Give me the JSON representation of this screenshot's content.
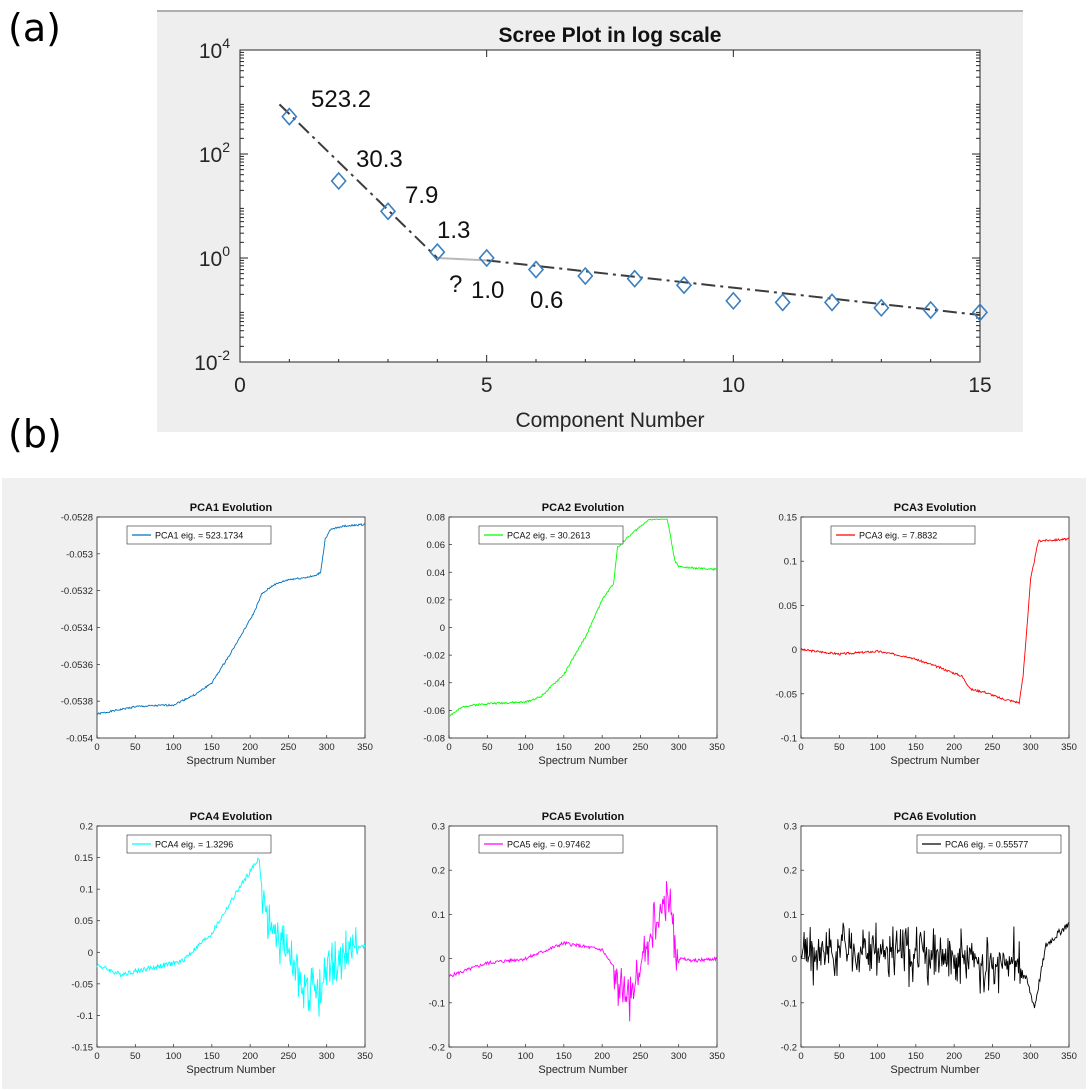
{
  "panel_labels": {
    "a": "(a)",
    "b": "(b)"
  },
  "chart_data": [
    {
      "type": "scatter",
      "title": "Scree Plot in log scale",
      "xlabel": "Component Number",
      "ylabel": "",
      "xlim": [
        0,
        15
      ],
      "ylim": [
        0.01,
        10000
      ],
      "yscale": "log",
      "x_ticks": [
        "0",
        "5",
        "10",
        "15"
      ],
      "y_ticks": [
        {
          "base": "10",
          "exp": "4"
        },
        {
          "base": "10",
          "exp": "2"
        },
        {
          "base": "10",
          "exp": "0"
        },
        {
          "base": "10",
          "exp": "-2"
        }
      ],
      "marker": "diamond",
      "marker_color": "#3a7fc0",
      "background": "#eeeeee",
      "x": [
        1,
        2,
        3,
        4,
        5,
        6,
        7,
        8,
        9,
        10,
        11,
        12,
        13,
        14,
        15
      ],
      "y": [
        523.2,
        30.3,
        7.9,
        1.3,
        1.0,
        0.6,
        0.45,
        0.4,
        0.3,
        0.15,
        0.14,
        0.14,
        0.11,
        0.1,
        0.09
      ],
      "fit_lines": [
        {
          "x": [
            0.8,
            4
          ],
          "y": [
            900,
            1.0
          ],
          "style": "dash-dot"
        },
        {
          "x": [
            4,
            5
          ],
          "y": [
            1.0,
            0.9
          ],
          "style": "solid-gray"
        },
        {
          "x": [
            5,
            15
          ],
          "y": [
            0.9,
            0.08
          ],
          "style": "dash-dot"
        }
      ],
      "annotations": [
        "523.2",
        "30.3",
        "7.9",
        "1.3",
        "?",
        "1.0",
        "0.6"
      ]
    },
    {
      "type": "line",
      "title": "PCA1 Evolution",
      "xlabel": "Spectrum Number",
      "legend": "PCA1 eig. = 523.1734",
      "legend_position": "top-left",
      "color": "#0072bd",
      "xlim": [
        0,
        350
      ],
      "ylim": [
        -0.054,
        -0.0528
      ],
      "y_ticks": [
        "-0.054",
        "-0.0538",
        "-0.0536",
        "-0.0534",
        "-0.0532",
        "-0.053",
        "-0.0528"
      ],
      "x_ticks": [
        "0",
        "50",
        "100",
        "150",
        "200",
        "250",
        "300",
        "350"
      ],
      "x": [
        0,
        50,
        100,
        130,
        150,
        170,
        190,
        205,
        215,
        230,
        250,
        270,
        285,
        292,
        298,
        305,
        320,
        350
      ],
      "y": [
        -0.05387,
        -0.05383,
        -0.05382,
        -0.05376,
        -0.0537,
        -0.05357,
        -0.05343,
        -0.05332,
        -0.05322,
        -0.05317,
        -0.05314,
        -0.05313,
        -0.05312,
        -0.0531,
        -0.05292,
        -0.05287,
        -0.05285,
        -0.05284
      ],
      "noise": 5e-06,
      "seed": 1
    },
    {
      "type": "line",
      "title": "PCA2 Evolution",
      "xlabel": "Spectrum Number",
      "legend": "PCA2 eig. = 30.2613",
      "legend_position": "top-left",
      "color": "#00ff00",
      "xlim": [
        0,
        350
      ],
      "ylim": [
        -0.08,
        0.08
      ],
      "y_ticks": [
        "-0.08",
        "-0.06",
        "-0.04",
        "-0.02",
        "0",
        "0.02",
        "0.04",
        "0.06",
        "0.08"
      ],
      "x_ticks": [
        "0",
        "50",
        "100",
        "150",
        "200",
        "250",
        "300",
        "350"
      ],
      "x": [
        0,
        20,
        50,
        100,
        120,
        150,
        180,
        200,
        215,
        220,
        235,
        260,
        285,
        295,
        300,
        320,
        350
      ],
      "y": [
        -0.064,
        -0.057,
        -0.055,
        -0.054,
        -0.05,
        -0.034,
        -0.005,
        0.02,
        0.032,
        0.058,
        0.066,
        0.078,
        0.079,
        0.048,
        0.044,
        0.043,
        0.042
      ],
      "noise": 0.0007,
      "seed": 2
    },
    {
      "type": "line",
      "title": "PCA3 Evolution",
      "xlabel": "Spectrum Number",
      "legend": "PCA3 eig. = 7.8832",
      "legend_position": "top-left",
      "color": "#ff0000",
      "xlim": [
        0,
        350
      ],
      "ylim": [
        -0.1,
        0.15
      ],
      "y_ticks": [
        "-0.1",
        "-0.05",
        "0",
        "0.05",
        "0.1",
        "0.15"
      ],
      "x_ticks": [
        "0",
        "50",
        "100",
        "150",
        "200",
        "250",
        "300",
        "350"
      ],
      "x": [
        0,
        50,
        100,
        140,
        180,
        210,
        218,
        222,
        240,
        260,
        285,
        290,
        300,
        310,
        350
      ],
      "y": [
        0,
        -0.005,
        -0.002,
        -0.008,
        -0.02,
        -0.03,
        -0.04,
        -0.045,
        -0.048,
        -0.055,
        -0.06,
        -0.03,
        0.08,
        0.123,
        0.125
      ],
      "noise": 0.0012,
      "seed": 3
    },
    {
      "type": "line",
      "title": "PCA4 Evolution",
      "xlabel": "Spectrum Number",
      "legend": "PCA4 eig. = 1.3296",
      "legend_position": "top-left",
      "color": "#00ffff",
      "xlim": [
        0,
        350
      ],
      "ylim": [
        -0.15,
        0.2
      ],
      "y_ticks": [
        "-0.15",
        "-0.1",
        "-0.05",
        "0",
        "0.05",
        "0.1",
        "0.15",
        "0.2"
      ],
      "x_ticks": [
        "0",
        "50",
        "100",
        "150",
        "200",
        "250",
        "300",
        "350"
      ],
      "x": [
        0,
        30,
        70,
        110,
        150,
        185,
        212,
        216,
        225,
        250,
        270,
        290,
        300,
        320,
        350
      ],
      "y": [
        -0.02,
        -0.035,
        -0.025,
        -0.015,
        0.03,
        0.1,
        0.15,
        0.08,
        0.05,
        -0.01,
        -0.05,
        -0.07,
        -0.03,
        0,
        0.01
      ],
      "noise": 0.004,
      "spike_from": 215,
      "spike_amp": 0.04,
      "seed": 4
    },
    {
      "type": "line",
      "title": "PCA5 Evolution",
      "xlabel": "Spectrum Number",
      "legend": "PCA5 eig. = 0.97462",
      "legend_position": "top-left",
      "color": "#ff00ff",
      "xlim": [
        0,
        350
      ],
      "ylim": [
        -0.2,
        0.3
      ],
      "y_ticks": [
        "-0.2",
        "-0.1",
        "0",
        "0.1",
        "0.2",
        "0.3"
      ],
      "x_ticks": [
        "0",
        "50",
        "100",
        "150",
        "200",
        "250",
        "300",
        "350"
      ],
      "x": [
        0,
        50,
        100,
        150,
        200,
        215,
        230,
        245,
        260,
        275,
        285,
        295,
        300,
        320,
        350
      ],
      "y": [
        -0.04,
        -0.01,
        0,
        0.035,
        0.02,
        -0.02,
        -0.1,
        -0.06,
        0.03,
        0.11,
        0.14,
        0.05,
        0,
        -0.005,
        0
      ],
      "noise": 0.004,
      "spike_from": 215,
      "spike_to": 300,
      "spike_amp": 0.06,
      "seed": 5
    },
    {
      "type": "line",
      "title": "PCA6 Evolution",
      "xlabel": "Spectrum Number",
      "legend": "PCA6 eig. = 0.55577",
      "legend_position": "top-right",
      "color": "#000000",
      "xlim": [
        0,
        350
      ],
      "ylim": [
        -0.2,
        0.3
      ],
      "y_ticks": [
        "-0.2",
        "-0.1",
        "0",
        "0.1",
        "0.2",
        "0.3"
      ],
      "x_ticks": [
        "0",
        "50",
        "100",
        "150",
        "200",
        "250",
        "300",
        "350"
      ],
      "x": [
        0,
        50,
        100,
        150,
        200,
        250,
        280,
        295,
        305,
        320,
        350
      ],
      "y": [
        0.01,
        0.02,
        0.02,
        0.01,
        0,
        -0.01,
        0,
        -0.05,
        -0.11,
        0.03,
        0.08
      ],
      "noise": 0.008,
      "spike_from": 0,
      "spike_to": 290,
      "spike_amp": 0.07,
      "seed": 6
    }
  ]
}
